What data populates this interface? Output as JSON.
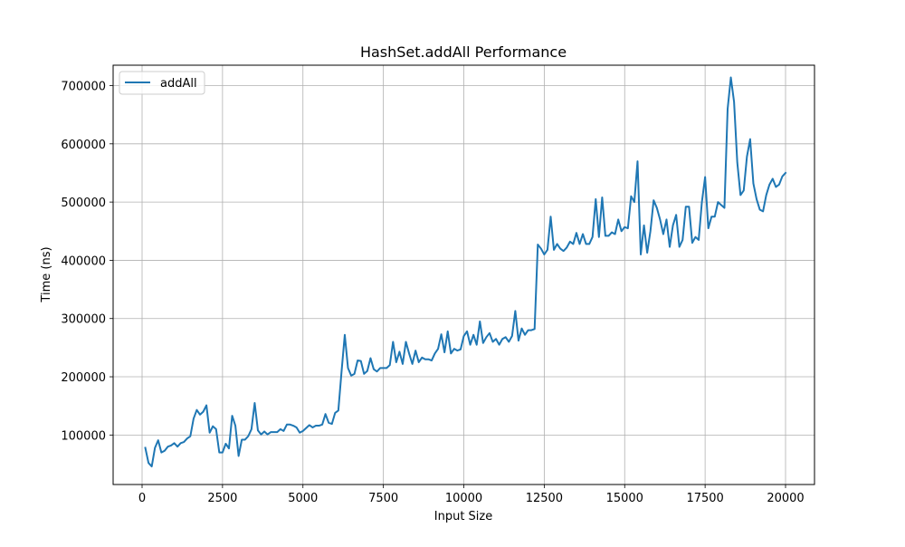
{
  "chart_data": {
    "type": "line",
    "title": "HashSet.addAll Performance",
    "xlabel": "Input Size",
    "ylabel": "Time (ns)",
    "xlim": [
      -900,
      20900
    ],
    "ylim": [
      15000,
      735000
    ],
    "grid": true,
    "legend_position": "top-left",
    "x_ticks": [
      0,
      2500,
      5000,
      7500,
      10000,
      12500,
      15000,
      17500,
      20000
    ],
    "y_ticks": [
      100000,
      200000,
      300000,
      400000,
      500000,
      600000,
      700000
    ],
    "x_tick_labels": [
      "0",
      "2500",
      "5000",
      "7500",
      "10000",
      "12500",
      "15000",
      "17500",
      "20000"
    ],
    "y_tick_labels": [
      "100000",
      "200000",
      "300000",
      "400000",
      "500000",
      "600000",
      "700000"
    ],
    "series": [
      {
        "name": "addAll",
        "color": "#1f77b4",
        "x": [
          100,
          200,
          300,
          400,
          500,
          600,
          700,
          800,
          900,
          1000,
          1100,
          1200,
          1300,
          1400,
          1500,
          1600,
          1700,
          1800,
          1900,
          2000,
          2100,
          2200,
          2300,
          2400,
          2500,
          2600,
          2700,
          2800,
          2900,
          3000,
          3100,
          3200,
          3300,
          3400,
          3500,
          3600,
          3700,
          3800,
          3900,
          4000,
          4100,
          4200,
          4300,
          4400,
          4500,
          4600,
          4700,
          4800,
          4900,
          5000,
          5100,
          5200,
          5300,
          5400,
          5500,
          5600,
          5700,
          5800,
          5900,
          6000,
          6100,
          6200,
          6300,
          6400,
          6500,
          6600,
          6700,
          6800,
          6900,
          7000,
          7100,
          7200,
          7300,
          7400,
          7500,
          7600,
          7700,
          7800,
          7900,
          8000,
          8100,
          8200,
          8300,
          8400,
          8500,
          8600,
          8700,
          8800,
          8900,
          9000,
          9100,
          9200,
          9300,
          9400,
          9500,
          9600,
          9700,
          9800,
          9900,
          10000,
          10100,
          10200,
          10300,
          10400,
          10500,
          10600,
          10700,
          10800,
          10900,
          11000,
          11100,
          11200,
          11300,
          11400,
          11500,
          11600,
          11700,
          11800,
          11900,
          12000,
          12100,
          12200,
          12300,
          12400,
          12500,
          12600,
          12700,
          12800,
          12900,
          13000,
          13100,
          13200,
          13300,
          13400,
          13500,
          13600,
          13700,
          13800,
          13900,
          14000,
          14100,
          14200,
          14300,
          14400,
          14500,
          14600,
          14700,
          14800,
          14900,
          15000,
          15100,
          15200,
          15300,
          15400,
          15500,
          15600,
          15700,
          15800,
          15900,
          16000,
          16100,
          16200,
          16300,
          16400,
          16500,
          16600,
          16700,
          16800,
          16900,
          17000,
          17100,
          17200,
          17300,
          17400,
          17500,
          17600,
          17700,
          17800,
          17900,
          18000,
          18100,
          18200,
          18300,
          18400,
          18500,
          18600,
          18700,
          18800,
          18900,
          19000,
          19100,
          19200,
          19300,
          19400,
          19500,
          19600,
          19700,
          19800,
          19900,
          20000
        ],
        "y": [
          78000,
          52000,
          46000,
          78000,
          91000,
          70000,
          73000,
          80000,
          82000,
          86000,
          80000,
          86000,
          88000,
          94000,
          98000,
          128000,
          143000,
          135000,
          140000,
          151000,
          104000,
          115000,
          110000,
          70000,
          70000,
          85000,
          77000,
          133000,
          116000,
          64000,
          92000,
          92000,
          98000,
          110000,
          155000,
          108000,
          101000,
          106000,
          101000,
          105000,
          105000,
          105000,
          110000,
          107000,
          118000,
          118000,
          116000,
          113000,
          104000,
          107000,
          112000,
          117000,
          113000,
          116000,
          116000,
          118000,
          136000,
          121000,
          119000,
          138000,
          142000,
          209000,
          272000,
          215000,
          202000,
          205000,
          228000,
          227000,
          205000,
          210000,
          232000,
          213000,
          209000,
          215000,
          215000,
          215000,
          220000,
          260000,
          225000,
          243000,
          222000,
          260000,
          240000,
          222000,
          245000,
          225000,
          233000,
          230000,
          230000,
          228000,
          240000,
          248000,
          273000,
          242000,
          278000,
          240000,
          248000,
          245000,
          247000,
          270000,
          278000,
          255000,
          272000,
          255000,
          295000,
          258000,
          268000,
          275000,
          260000,
          265000,
          255000,
          265000,
          268000,
          260000,
          270000,
          313000,
          262000,
          283000,
          272000,
          280000,
          280000,
          282000,
          427000,
          420000,
          410000,
          418000,
          475000,
          418000,
          428000,
          420000,
          416000,
          422000,
          432000,
          428000,
          447000,
          428000,
          445000,
          428000,
          428000,
          440000,
          505000,
          440000,
          508000,
          442000,
          442000,
          448000,
          445000,
          470000,
          450000,
          457000,
          455000,
          510000,
          500000,
          570000,
          410000,
          460000,
          413000,
          450000,
          503000,
          490000,
          470000,
          445000,
          470000,
          423000,
          460000,
          478000,
          423000,
          435000,
          492000,
          492000,
          430000,
          440000,
          435000,
          500000,
          543000,
          455000,
          475000,
          475000,
          500000,
          495000,
          490000,
          660000,
          714000,
          672000,
          568000,
          512000,
          520000,
          578000,
          608000,
          532000,
          505000,
          487000,
          484000,
          512000,
          530000,
          540000,
          526000,
          530000,
          544000,
          550000
        ]
      }
    ]
  }
}
